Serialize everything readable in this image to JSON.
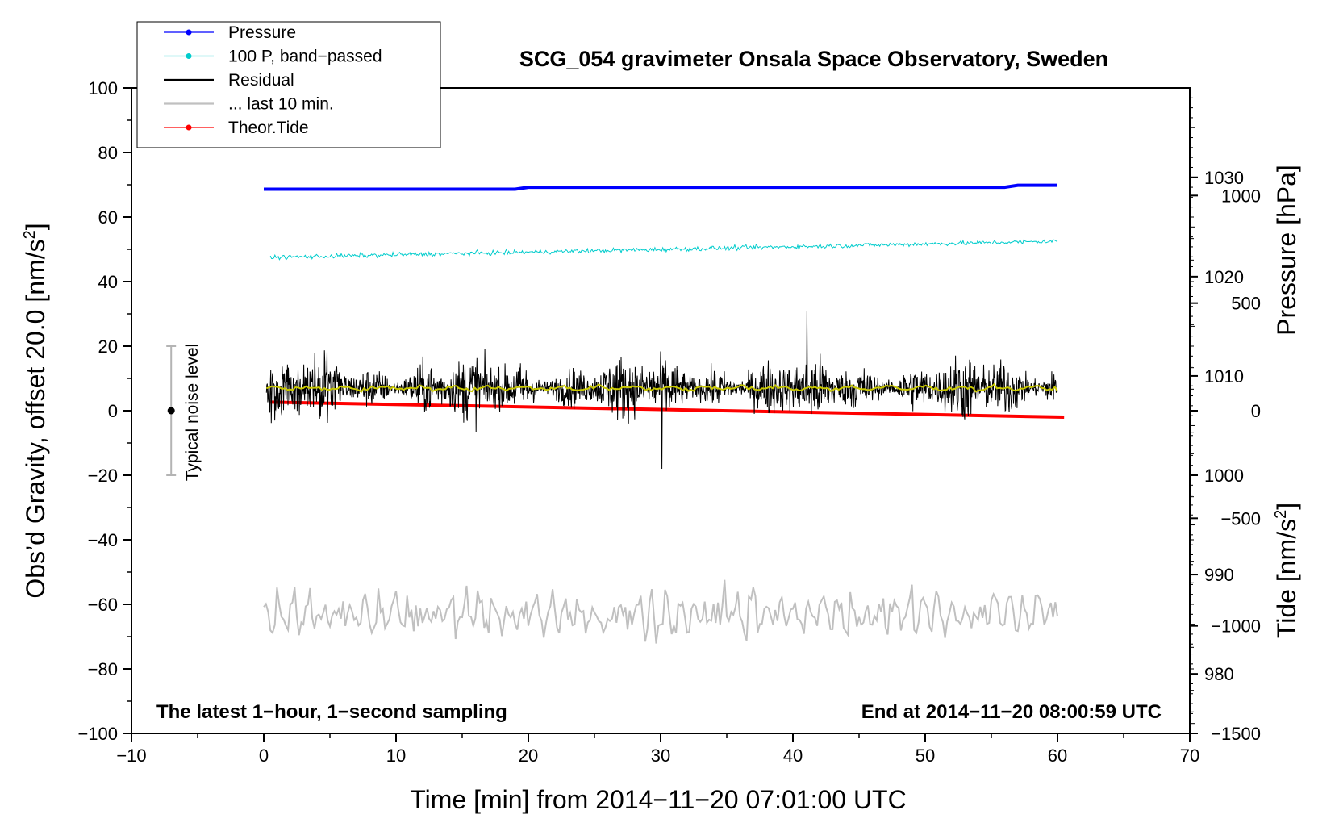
{
  "chart_data": {
    "type": "line",
    "title": "SCG_054 gravimeter Onsala Space Observatory, Sweden",
    "xlabel": "Time [min] from 2014−11−20 07:01:00 UTC",
    "ylabel_left_main": "Obs’d Gravity, offset 20.0 [nm/s",
    "ylabel_left_sup": "2",
    "ylabel_left_close": "]",
    "ylabel_right_pressure": "Pressure [hPa]",
    "ylabel_right_tide_main": "Tide [nm/s",
    "ylabel_right_tide_sup": "2",
    "ylabel_right_tide_close": "]",
    "xlim": [
      -10,
      70
    ],
    "ylim": [
      -100,
      100
    ],
    "pressure_lim": [
      974,
      1039
    ],
    "tide_lim": [
      -1500,
      1500
    ],
    "x_ticks": [
      -10,
      0,
      10,
      20,
      30,
      40,
      50,
      60,
      70
    ],
    "x_tick_labels": [
      "−10",
      "0",
      "10",
      "20",
      "30",
      "40",
      "50",
      "60",
      "70"
    ],
    "y_ticks": [
      -100,
      -80,
      -60,
      -40,
      -20,
      0,
      20,
      40,
      60,
      80,
      100
    ],
    "y_tick_labels": [
      "−100",
      "−80",
      "−60",
      "−40",
      "−20",
      "0",
      "20",
      "40",
      "60",
      "80",
      "100"
    ],
    "pressure_ticks": [
      980,
      990,
      1000,
      1010,
      1020,
      1030
    ],
    "pressure_tick_labels": [
      "980",
      "990",
      "1000",
      "1010",
      "1020",
      "1030"
    ],
    "tide_ticks": [
      -1500,
      -1000,
      -500,
      0,
      500,
      1000
    ],
    "tide_tick_labels": [
      "−1500",
      "−1000",
      "−500",
      "0",
      "500",
      "1000"
    ],
    "legend": [
      {
        "label": "Pressure",
        "color": "#0000ff",
        "marker": true
      },
      {
        "label": "100 P, band−passed",
        "color": "#00cccc",
        "marker": true
      },
      {
        "label": "Residual",
        "color": "#000000",
        "marker": false
      },
      {
        "label": "... last 10 min.",
        "color": "#c0c0c0",
        "marker": false
      },
      {
        "label": "Theor.Tide",
        "color": "#ff0000",
        "marker": true
      }
    ],
    "legend_position": "top-left",
    "annotation_left": "The latest 1−hour, 1−second sampling",
    "annotation_right": "End at 2014−11−20 08:00:59 UTC",
    "noise_label": "Typical noise level",
    "noise_bar": {
      "x": -7,
      "center": 0,
      "half_range": 20
    },
    "series": [
      {
        "name": "Pressure",
        "color": "#0000ff",
        "axis": "pressure",
        "x": [
          0,
          19,
          20,
          56,
          57,
          60
        ],
        "values": [
          1028.8,
          1028.8,
          1029.0,
          1029.0,
          1029.2,
          1029.2
        ]
      },
      {
        "name": "100 P, band−passed",
        "color": "#00cccc",
        "axis": "left",
        "x_range": [
          0.5,
          60
        ],
        "trend": [
          47.5,
          52.5
        ],
        "noise_amplitude": 0.9
      },
      {
        "name": "Residual",
        "color": "#000000",
        "axis": "left",
        "x_range": [
          0.2,
          60
        ],
        "mean": 7,
        "noise_amplitude": 9,
        "min": -19,
        "max": 31
      },
      {
        "name": "Residual smoothed",
        "color": "#c8c800",
        "axis": "left",
        "x_range": [
          0.2,
          60
        ],
        "mean": 7,
        "noise_amplitude": 1
      },
      {
        "name": "... last 10 min.",
        "color": "#c0c0c0",
        "axis": "left",
        "x_range": [
          0,
          60
        ],
        "mean": -63,
        "noise_amplitude": 7,
        "min": -76,
        "max": -45
      },
      {
        "name": "Theor.Tide",
        "color": "#ff0000",
        "axis": "tide",
        "x": [
          0.5,
          60.5
        ],
        "values": [
          40,
          -30
        ]
      }
    ]
  }
}
